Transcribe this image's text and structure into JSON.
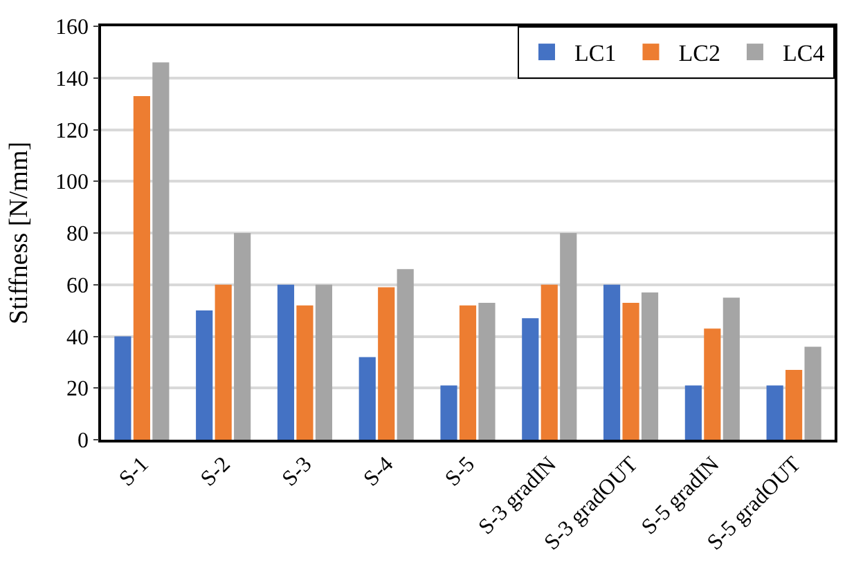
{
  "chart_data": {
    "type": "bar",
    "ylabel": "Stiffness [N/mm]",
    "categories": [
      "S-1",
      "S-2",
      "S-3",
      "S-4",
      "S-5",
      "S-3 gradIN",
      "S-3 gradOUT",
      "S-5 gradIN",
      "S-5 gradOUT"
    ],
    "series": [
      {
        "name": "LC1",
        "color": "#4472c4",
        "values": [
          40,
          50,
          60,
          32,
          21,
          47,
          60,
          21,
          21
        ]
      },
      {
        "name": "LC2",
        "color": "#ed7d31",
        "values": [
          133,
          60,
          52,
          59,
          52,
          60,
          53,
          43,
          27
        ]
      },
      {
        "name": "LC4",
        "color": "#a5a5a5",
        "values": [
          146,
          80,
          60,
          66,
          53,
          80,
          57,
          55,
          36
        ]
      }
    ],
    "ylim": [
      0,
      160
    ],
    "yticks": [
      0,
      20,
      40,
      60,
      80,
      100,
      120,
      140,
      160
    ],
    "grid": "y",
    "legend": "top right"
  }
}
